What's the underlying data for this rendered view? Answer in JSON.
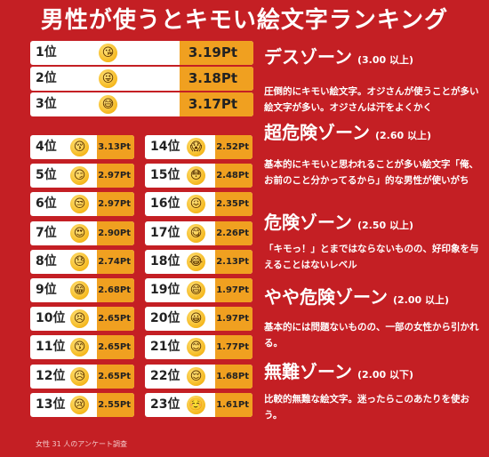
{
  "title": "男性が使うとキモい絵文字ランキング",
  "rankings": [
    {
      "rank": "1位",
      "emoji": "😘",
      "score": "3.19Pt",
      "value": 3.19
    },
    {
      "rank": "2位",
      "emoji": "😜",
      "score": "3.18Pt",
      "value": 3.18
    },
    {
      "rank": "3位",
      "emoji": "😅",
      "score": "3.17Pt",
      "value": 3.17
    },
    {
      "rank": "4位",
      "emoji": "😚",
      "score": "3.13Pt",
      "value": 3.13
    },
    {
      "rank": "5位",
      "emoji": "😏",
      "score": "2.97Pt",
      "value": 2.97
    },
    {
      "rank": "6位",
      "emoji": "😒",
      "score": "2.97Pt",
      "value": 2.97
    },
    {
      "rank": "7位",
      "emoji": "😍",
      "score": "2.90Pt",
      "value": 2.9
    },
    {
      "rank": "8位",
      "emoji": "😓",
      "score": "2.74Pt",
      "value": 2.74
    },
    {
      "rank": "9位",
      "emoji": "😁",
      "score": "2.68Pt",
      "value": 2.68
    },
    {
      "rank": "10位",
      "emoji": "😣",
      "score": "2.65Pt",
      "value": 2.65
    },
    {
      "rank": "11位",
      "emoji": "😙",
      "score": "2.65Pt",
      "value": 2.65
    },
    {
      "rank": "12位",
      "emoji": "😥",
      "score": "2.65Pt",
      "value": 2.65
    },
    {
      "rank": "13位",
      "emoji": "😢",
      "score": "2.55Pt",
      "value": 2.55
    },
    {
      "rank": "14位",
      "emoji": "😱",
      "score": "2.52Pt",
      "value": 2.52
    },
    {
      "rank": "15位",
      "emoji": "😳",
      "score": "2.48Pt",
      "value": 2.48
    },
    {
      "rank": "16位",
      "emoji": "😖",
      "score": "2.35Pt",
      "value": 2.35
    },
    {
      "rank": "17位",
      "emoji": "😋",
      "score": "2.26Pt",
      "value": 2.26
    },
    {
      "rank": "18位",
      "emoji": "😂",
      "score": "2.13Pt",
      "value": 2.13
    },
    {
      "rank": "19位",
      "emoji": "😄",
      "score": "1.97Pt",
      "value": 1.97
    },
    {
      "rank": "20位",
      "emoji": "😀",
      "score": "1.97Pt",
      "value": 1.97
    },
    {
      "rank": "21位",
      "emoji": "😊",
      "score": "1.77Pt",
      "value": 1.77
    },
    {
      "rank": "22位",
      "emoji": "😌",
      "score": "1.68Pt",
      "value": 1.68
    },
    {
      "rank": "23位",
      "emoji": "☺️",
      "score": "1.61Pt",
      "value": 1.61
    }
  ],
  "zones": [
    {
      "name": "デスゾーン",
      "range": "(3.00 以上)",
      "desc": ""
    },
    {
      "name": "超危険ゾーン",
      "range": "(2.60 以上)",
      "desc": "圧倒的にキモい絵文字。オジさんが使うことが多い絵文字が多い。オジさんは汗をよくかく"
    },
    {
      "name": "危険ゾーン",
      "range": "(2.50 以上)",
      "desc": "基本的にキモいと思われることが多い絵文字「俺、お前のこと分かってるから」的な男性が使いがち"
    },
    {
      "name": "やや危険ゾーン",
      "range": "(2.00 以上)",
      "desc": "「キモっ！」とまではならないものの、好印象を与えることはないレベル"
    },
    {
      "name": "無難ゾーン",
      "range": "(2.00 以下)",
      "desc": "基本的には問題ないものの、一部の女性から引かれる。"
    }
  ],
  "final_desc": "比較的無難な絵文字。迷ったらこのあたりを使おう。",
  "footnote": "女性 31 人のアンケート調査",
  "colors": {
    "background": "#c41f24",
    "bar": "#f0a020",
    "row": "#ffffff"
  }
}
